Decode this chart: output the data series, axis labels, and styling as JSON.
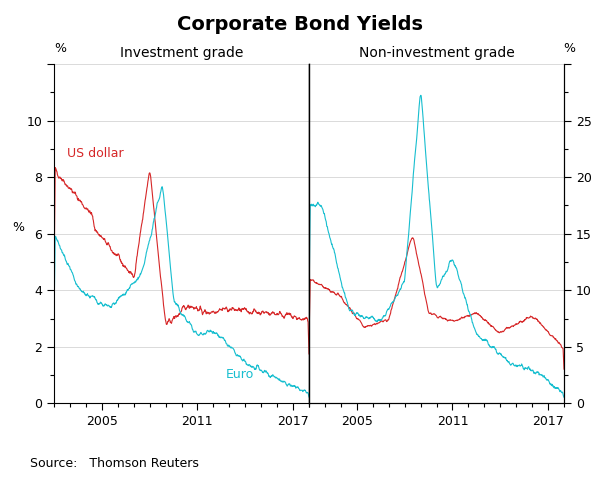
{
  "title": "Corporate Bond Yields",
  "left_panel_title": "Investment grade",
  "right_panel_title": "Non-investment grade",
  "source": "Source:   Thomson Reuters",
  "left_ylabel": "%",
  "right_ylabel": "%",
  "color_usd": "#d62728",
  "color_euro": "#17becf",
  "usd_label": "US dollar",
  "euro_label": "Euro",
  "year_start": 2002,
  "year_end": 2018,
  "freq": 52
}
